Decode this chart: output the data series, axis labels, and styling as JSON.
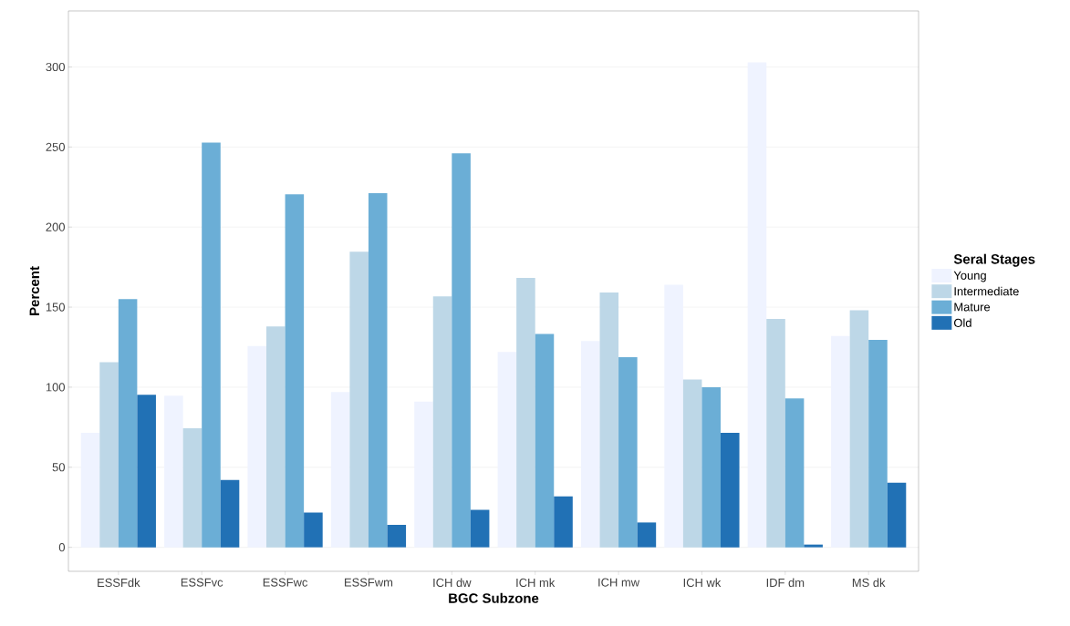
{
  "chart_data": {
    "type": "bar",
    "xlabel": "BGC Subzone",
    "ylabel": "Percent",
    "legend_title": "Seral Stages",
    "categories": [
      "ESSFdk",
      "ESSFvc",
      "ESSFwc",
      "ESSFwm",
      "ICH dw",
      "ICH mk",
      "ICH mw",
      "ICH wk",
      "IDF dm",
      "MS dk"
    ],
    "series": [
      {
        "name": "Young",
        "color": "#eff3ff",
        "values": [
          71.5,
          94.7,
          125.7,
          97,
          91,
          122,
          128.8,
          164,
          302.9,
          131.9
        ]
      },
      {
        "name": "Intermediate",
        "color": "#bdd7e7",
        "values": [
          115.6,
          74.4,
          138,
          184.6,
          156.7,
          168.3,
          159.2,
          104.8,
          142.6,
          148
        ]
      },
      {
        "name": "Mature",
        "color": "#6baed6",
        "values": [
          155,
          252.8,
          220.4,
          221.2,
          246,
          133.3,
          118.7,
          100,
          93,
          129.6
        ]
      },
      {
        "name": "Old",
        "color": "#2171b5",
        "values": [
          95.3,
          42,
          21.7,
          14,
          23.4,
          31.8,
          15.5,
          71.5,
          1.7,
          40.3
        ]
      }
    ],
    "ylim": [
      -15,
      335
    ],
    "yticks": [
      0,
      50,
      100,
      150,
      200,
      250,
      300
    ],
    "grid": "y",
    "legend": "right"
  }
}
